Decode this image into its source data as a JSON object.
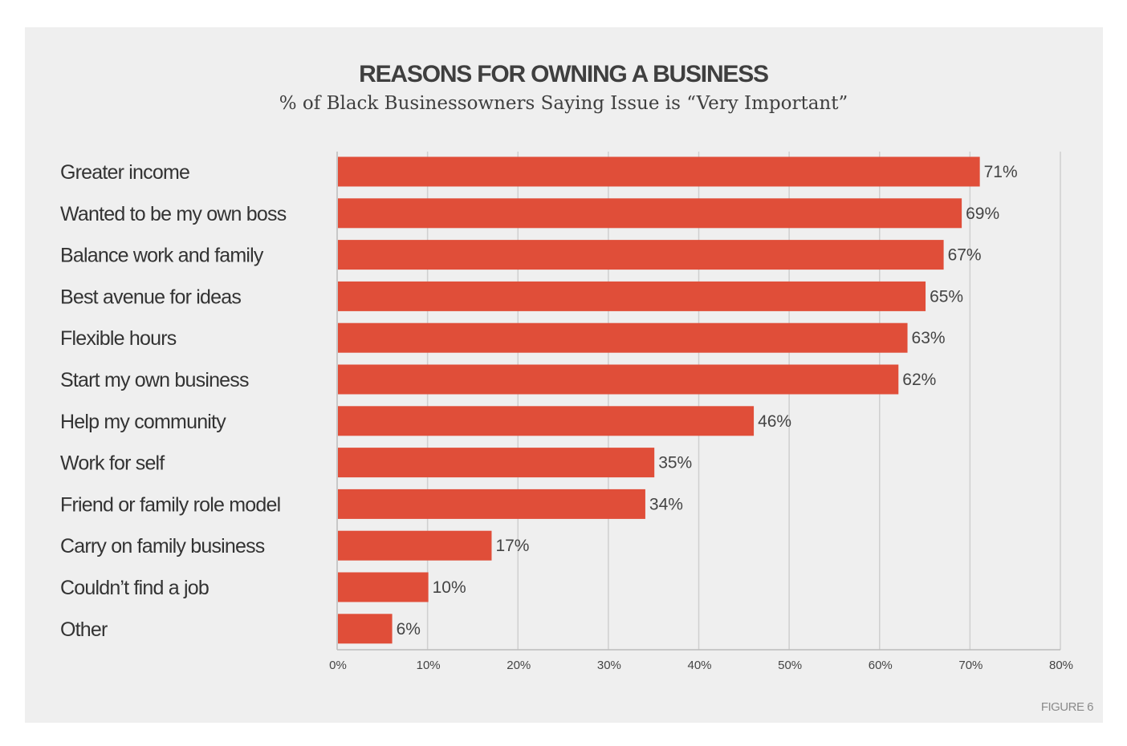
{
  "figure_label": "FIGURE 6",
  "colors": {
    "bar": "#e04e39",
    "grid": "#cfcfcf",
    "axis": "#bbbbbb",
    "panel_bg": "#efefef"
  },
  "chart_data": {
    "type": "bar",
    "orientation": "horizontal",
    "title": "REASONS FOR OWNING A BUSINESS",
    "subtitle": "% of Black Businessowners Saying Issue is “Very Important”",
    "categories": [
      "Greater income",
      "Wanted to be my own boss",
      "Balance work and family",
      "Best avenue for ideas",
      "Flexible hours",
      "Start my own business",
      "Help my community",
      "Work for self",
      "Friend or family role model",
      "Carry on family business",
      "Couldn’t find a job",
      "Other"
    ],
    "values": [
      71,
      69,
      67,
      65,
      63,
      62,
      46,
      35,
      34,
      17,
      10,
      6
    ],
    "value_labels": [
      "71%",
      "69%",
      "67%",
      "65%",
      "63%",
      "62%",
      "46%",
      "35%",
      "34%",
      "17%",
      "10%",
      "6%"
    ],
    "xlim": [
      0,
      80
    ],
    "xticks": [
      0,
      10,
      20,
      30,
      40,
      50,
      60,
      70,
      80
    ],
    "xtick_labels": [
      "0%",
      "10%",
      "20%",
      "30%",
      "40%",
      "50%",
      "60%",
      "70%",
      "80%"
    ],
    "grid": true,
    "legend": "none"
  }
}
